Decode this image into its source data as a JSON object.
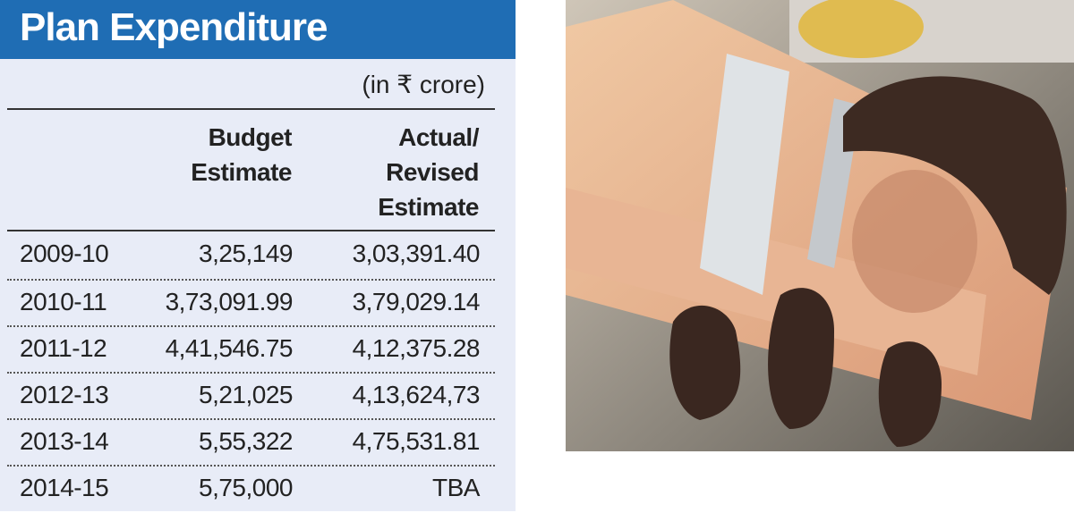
{
  "header": {
    "title": "Plan Expenditure",
    "unit": "(in ₹ crore)"
  },
  "table": {
    "columns": [
      [
        "Budget",
        "Estimate"
      ],
      [
        "Actual/",
        "Revised",
        "Estimate"
      ]
    ],
    "rows": [
      [
        "2009-10",
        "3,25,149",
        "3,03,391.40"
      ],
      [
        "2010-11",
        "3,73,091.99",
        "3,79,029.14"
      ],
      [
        "2011-12",
        "4,41,546.75",
        "4,12,375.28"
      ],
      [
        "2012-13",
        "5,21,025",
        "4,13,624,73"
      ],
      [
        "2013-14",
        "5,55,322",
        "4,75,531.81"
      ],
      [
        "2014-15",
        "5,75,000",
        "TBA"
      ]
    ]
  }
}
